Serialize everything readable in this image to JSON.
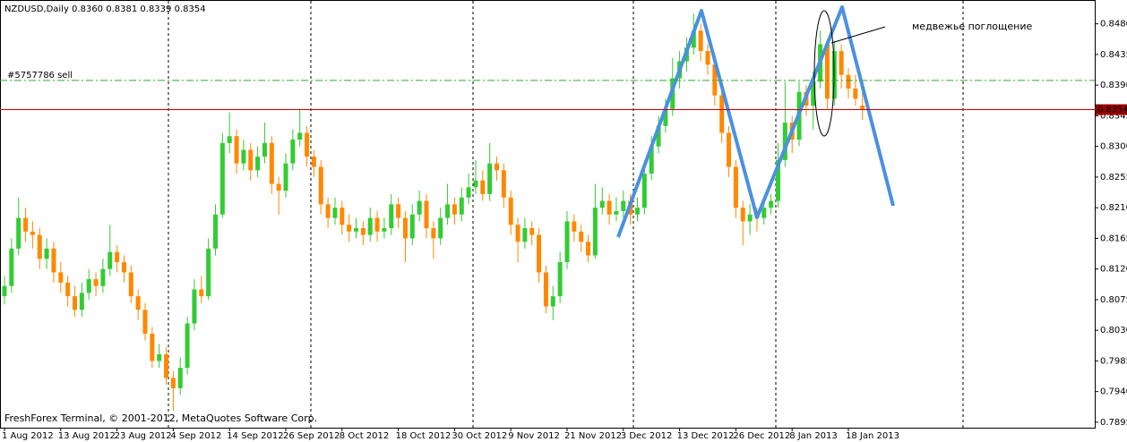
{
  "chart_data": {
    "type": "candlestick",
    "header": "NZDUSD,Daily  0.8360 0.8381 0.8339 0.8354",
    "copyright": "FreshForex Terminal, © 2001-2012, MetaQuotes Software Corp.",
    "annotation": "медвежье поглощение",
    "order_line": {
      "value": 0.8397,
      "label": "#5757786 sell"
    },
    "current_price": {
      "value": 0.8354,
      "label": "0.8354"
    },
    "bull_color": "#33cc33",
    "bear_color": "#ff8800",
    "categories": [
      "1 Aug 2012",
      null,
      null,
      null,
      null,
      null,
      null,
      null,
      "13 Aug 2012",
      null,
      null,
      null,
      null,
      null,
      null,
      null,
      "23 Aug 2012",
      null,
      null,
      null,
      null,
      null,
      null,
      null,
      "4 Sep 2012",
      null,
      null,
      null,
      null,
      null,
      null,
      null,
      "14 Sep 2012",
      null,
      null,
      null,
      null,
      null,
      null,
      null,
      "26 Sep 2012",
      null,
      null,
      null,
      null,
      null,
      null,
      null,
      "8 Oct 2012",
      null,
      null,
      null,
      null,
      null,
      null,
      null,
      "18 Oct 2012",
      null,
      null,
      null,
      null,
      null,
      null,
      null,
      "30 Oct 2012",
      null,
      null,
      null,
      null,
      null,
      null,
      null,
      "9 Nov 2012",
      null,
      null,
      null,
      null,
      null,
      null,
      null,
      "21 Nov 2012",
      null,
      null,
      null,
      null,
      null,
      null,
      null,
      "3 Dec 2012",
      null,
      null,
      null,
      null,
      null,
      null,
      null,
      "13 Dec 2012",
      null,
      null,
      null,
      null,
      null,
      null,
      null,
      "26 Dec 2012",
      null,
      null,
      null,
      null,
      null,
      null,
      null,
      "8 Jan 2013",
      null,
      null,
      null,
      null,
      null,
      null,
      null,
      "18 Jan 2013",
      null,
      null
    ],
    "open": [
      0.808,
      0.8095,
      0.815,
      0.8195,
      0.8175,
      0.817,
      0.8135,
      0.815,
      0.8115,
      0.81,
      0.808,
      0.806,
      0.8085,
      0.8105,
      0.8095,
      0.812,
      0.8145,
      0.813,
      0.8115,
      0.808,
      0.806,
      0.8025,
      0.7985,
      0.7995,
      0.796,
      0.7945,
      0.7975,
      0.804,
      0.809,
      0.808,
      0.815,
      0.82,
      0.8305,
      0.8315,
      0.8275,
      0.8295,
      0.8265,
      0.8285,
      0.8305,
      0.8245,
      0.8235,
      0.8275,
      0.831,
      0.832,
      0.8285,
      0.827,
      0.8215,
      0.8195,
      0.821,
      0.8185,
      0.8175,
      0.818,
      0.817,
      0.8195,
      0.8175,
      0.818,
      0.8215,
      0.8195,
      0.8165,
      0.82,
      0.822,
      0.818,
      0.8165,
      0.8195,
      0.8215,
      0.82,
      0.8225,
      0.824,
      0.825,
      0.823,
      0.8275,
      0.8265,
      0.8225,
      0.8185,
      0.816,
      0.818,
      0.817,
      0.8115,
      0.8065,
      0.808,
      0.813,
      0.819,
      0.8175,
      0.816,
      0.814,
      0.821,
      0.822,
      0.82,
      0.8205,
      0.822,
      0.82,
      0.821,
      0.826,
      0.83,
      0.833,
      0.8355,
      0.84,
      0.8425,
      0.8445,
      0.847,
      0.844,
      0.842,
      0.8375,
      0.832,
      0.827,
      0.821,
      0.819,
      0.82,
      0.8195,
      0.821,
      0.822,
      0.828,
      0.8335,
      0.831,
      0.838,
      0.836,
      0.8395,
      0.845,
      0.837,
      0.844,
      0.8405,
      0.8385,
      0.836
    ],
    "high": [
      0.811,
      0.8165,
      0.8225,
      0.821,
      0.819,
      0.818,
      0.8165,
      0.816,
      0.813,
      0.811,
      0.8095,
      0.81,
      0.812,
      0.8115,
      0.8135,
      0.8185,
      0.8155,
      0.814,
      0.8125,
      0.809,
      0.807,
      0.8035,
      0.801,
      0.8005,
      0.797,
      0.799,
      0.805,
      0.8105,
      0.811,
      0.8165,
      0.8215,
      0.832,
      0.835,
      0.8325,
      0.831,
      0.8305,
      0.83,
      0.8335,
      0.8315,
      0.8255,
      0.829,
      0.8325,
      0.8355,
      0.833,
      0.8295,
      0.828,
      0.8225,
      0.8225,
      0.822,
      0.82,
      0.8195,
      0.819,
      0.821,
      0.8205,
      0.8195,
      0.823,
      0.8225,
      0.8205,
      0.8215,
      0.8235,
      0.823,
      0.819,
      0.821,
      0.8245,
      0.8225,
      0.824,
      0.826,
      0.828,
      0.8265,
      0.8305,
      0.8285,
      0.8275,
      0.8235,
      0.8195,
      0.8195,
      0.819,
      0.818,
      0.8125,
      0.8095,
      0.8145,
      0.8205,
      0.82,
      0.8185,
      0.817,
      0.8245,
      0.824,
      0.823,
      0.8225,
      0.8235,
      0.823,
      0.8225,
      0.8275,
      0.8315,
      0.8345,
      0.837,
      0.843,
      0.844,
      0.846,
      0.8495,
      0.848,
      0.845,
      0.843,
      0.8385,
      0.833,
      0.828,
      0.822,
      0.8215,
      0.821,
      0.8225,
      0.823,
      0.8305,
      0.8395,
      0.8345,
      0.8395,
      0.839,
      0.841,
      0.847,
      0.8455,
      0.8455,
      0.845,
      0.8415,
      0.8405,
      0.8381
    ],
    "low": [
      0.8068,
      0.8085,
      0.814,
      0.816,
      0.815,
      0.812,
      0.812,
      0.81,
      0.8085,
      0.8065,
      0.805,
      0.805,
      0.8075,
      0.808,
      0.8085,
      0.811,
      0.8115,
      0.81,
      0.807,
      0.8045,
      0.8015,
      0.7975,
      0.7975,
      0.795,
      0.7912,
      0.7935,
      0.7965,
      0.803,
      0.807,
      0.8075,
      0.814,
      0.8195,
      0.829,
      0.826,
      0.8265,
      0.825,
      0.8255,
      0.8275,
      0.823,
      0.82,
      0.8225,
      0.8265,
      0.83,
      0.827,
      0.8255,
      0.82,
      0.818,
      0.8185,
      0.817,
      0.816,
      0.8165,
      0.8155,
      0.816,
      0.816,
      0.8165,
      0.817,
      0.818,
      0.813,
      0.8155,
      0.819,
      0.8165,
      0.8135,
      0.8155,
      0.8185,
      0.8185,
      0.819,
      0.8215,
      0.823,
      0.822,
      0.822,
      0.825,
      0.821,
      0.817,
      0.813,
      0.815,
      0.8155,
      0.81,
      0.8055,
      0.8045,
      0.807,
      0.812,
      0.816,
      0.8145,
      0.813,
      0.8135,
      0.82,
      0.8185,
      0.819,
      0.8195,
      0.8185,
      0.819,
      0.82,
      0.825,
      0.829,
      0.832,
      0.8345,
      0.8385,
      0.841,
      0.8435,
      0.8425,
      0.8405,
      0.836,
      0.8305,
      0.8255,
      0.8195,
      0.8155,
      0.817,
      0.8175,
      0.8185,
      0.82,
      0.821,
      0.827,
      0.829,
      0.83,
      0.8345,
      0.8325,
      0.8385,
      0.8355,
      0.836,
      0.8385,
      0.837,
      0.836,
      0.8339
    ],
    "close": [
      0.8095,
      0.815,
      0.8195,
      0.8175,
      0.817,
      0.8135,
      0.815,
      0.8115,
      0.81,
      0.808,
      0.806,
      0.8085,
      0.8105,
      0.8095,
      0.812,
      0.8145,
      0.813,
      0.8115,
      0.808,
      0.806,
      0.8025,
      0.7985,
      0.7995,
      0.796,
      0.7945,
      0.7975,
      0.804,
      0.809,
      0.808,
      0.815,
      0.82,
      0.8305,
      0.8315,
      0.8275,
      0.8295,
      0.8265,
      0.8285,
      0.8305,
      0.8245,
      0.8235,
      0.8275,
      0.831,
      0.832,
      0.8285,
      0.827,
      0.8215,
      0.8195,
      0.821,
      0.8185,
      0.8175,
      0.818,
      0.817,
      0.8195,
      0.8175,
      0.818,
      0.8215,
      0.8195,
      0.8165,
      0.82,
      0.822,
      0.818,
      0.8165,
      0.8195,
      0.8215,
      0.82,
      0.8225,
      0.824,
      0.825,
      0.823,
      0.8275,
      0.8265,
      0.8225,
      0.8185,
      0.816,
      0.818,
      0.817,
      0.8115,
      0.8065,
      0.808,
      0.813,
      0.819,
      0.8175,
      0.816,
      0.814,
      0.821,
      0.822,
      0.82,
      0.8205,
      0.822,
      0.82,
      0.821,
      0.826,
      0.83,
      0.833,
      0.8355,
      0.84,
      0.8425,
      0.8445,
      0.847,
      0.844,
      0.842,
      0.8375,
      0.832,
      0.827,
      0.821,
      0.819,
      0.82,
      0.8195,
      0.821,
      0.822,
      0.828,
      0.8335,
      0.831,
      0.838,
      0.836,
      0.8395,
      0.845,
      0.837,
      0.844,
      0.8405,
      0.8385,
      0.837,
      0.8354
    ],
    "ylim": [
      0.7887,
      0.8515
    ],
    "yticks": [
      {
        "value": 0.848,
        "label": "0.8480"
      },
      {
        "value": 0.8435,
        "label": "0.8435"
      },
      {
        "value": 0.839,
        "label": "0.8390"
      },
      {
        "value": 0.8345,
        "label": "0.8345"
      },
      {
        "value": 0.83,
        "label": "0.8300"
      },
      {
        "value": 0.8255,
        "label": "0.8255"
      },
      {
        "value": 0.821,
        "label": "0.8210"
      },
      {
        "value": 0.8165,
        "label": "0.8165"
      },
      {
        "value": 0.812,
        "label": "0.8120"
      },
      {
        "value": 0.8075,
        "label": "0.8075"
      },
      {
        "value": 0.803,
        "label": "0.8030"
      },
      {
        "value": 0.7985,
        "label": "0.7985"
      },
      {
        "value": 0.794,
        "label": "0.7940"
      },
      {
        "value": 0.7895,
        "label": "0.7895"
      }
    ]
  }
}
